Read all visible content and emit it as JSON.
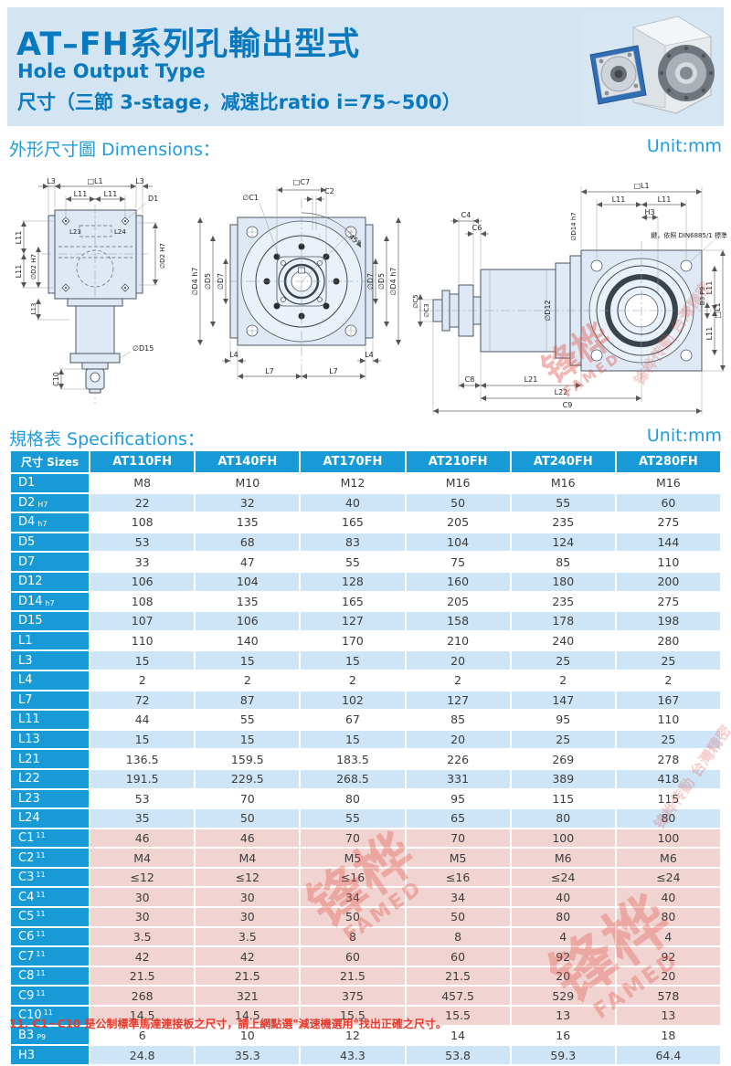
{
  "colors": {
    "title_blue": "#0879bf",
    "section_blue": "#1b9ce0",
    "table_blue": "#189ad6",
    "row_light_blue": "#cde5f6",
    "row_pink": "#f1d4d1",
    "note_red": "#e8392b",
    "band_bg": "#d3e4f3",
    "flange_blue": "#2f6db5",
    "watermark_red": "#e05448"
  },
  "header": {
    "title": "AT–FH系列孔輸出型式",
    "subtitle_en": "Hole Output Type",
    "subtitle_spec": "尺寸（三節 3-stage，减速比ratio i=75~500）"
  },
  "sections": {
    "dimensions": {
      "label": "外形尺寸圖 Dimensions：",
      "unit": "Unit:mm"
    },
    "specifications": {
      "label": "規格表 Specifications：",
      "unit": "Unit:mm"
    }
  },
  "drawings": {
    "left": {
      "labels": {
        "l3a": "L3",
        "l1": "□L1",
        "l3b": "L3",
        "l11a": "L11",
        "l11b": "L11",
        "d1": "D1",
        "l23": "L23",
        "l24": "L24",
        "d2r": "∅D2 H7",
        "l11c": "L11",
        "l11d": "L11",
        "d2l": "∅D2 H7",
        "l13": "L13",
        "d15": "∅D15",
        "c10": "C10"
      }
    },
    "middle": {
      "labels": {
        "c7": "□C7",
        "c1": "∅C1",
        "c2": "C2",
        "deg45": "45°",
        "d4l": "∅D4 h7",
        "d5l": "∅D5",
        "d7l": "∅D7",
        "d7r": "∅D7",
        "d5r": "∅D5",
        "d4r": "∅D4 h7",
        "l4a": "L4",
        "l4b": "L4",
        "l7a": "L7",
        "l7b": "L7"
      }
    },
    "right": {
      "labels": {
        "c4": "C4",
        "c6": "C6",
        "l1top": "□L1",
        "l11a": "L11",
        "l11b": "L11",
        "h3": "H3",
        "key_note": "鍵，依照 DIN6885/1 標準",
        "c5": "∅C5",
        "c3": "∅C3",
        "d14": "∅D14 h7",
        "d12": "∅D12",
        "c8": "C8",
        "l21": "L21",
        "l22": "L22",
        "c9": "C9",
        "b3": "B3 P9",
        "l11r1": "L11",
        "l11r2": "L11",
        "l1r": "□L1"
      }
    }
  },
  "table": {
    "header": [
      "尺寸 Sizes",
      "AT110FH",
      "AT140FH",
      "AT170FH",
      "AT210FH",
      "AT240FH",
      "AT280FH"
    ],
    "rows": [
      {
        "label": "D1",
        "values": [
          "M8",
          "M10",
          "M12",
          "M16",
          "M16",
          "M16"
        ]
      },
      {
        "label": "D2",
        "sub": "H7",
        "values": [
          "22",
          "32",
          "40",
          "50",
          "55",
          "60"
        ]
      },
      {
        "label": "D4",
        "sub": "h7",
        "values": [
          "108",
          "135",
          "165",
          "205",
          "235",
          "275"
        ]
      },
      {
        "label": "D5",
        "values": [
          "53",
          "68",
          "83",
          "104",
          "124",
          "144"
        ]
      },
      {
        "label": "D7",
        "values": [
          "33",
          "47",
          "55",
          "75",
          "85",
          "110"
        ]
      },
      {
        "label": "D12",
        "values": [
          "106",
          "104",
          "128",
          "160",
          "180",
          "200"
        ]
      },
      {
        "label": "D14",
        "sub": "h7",
        "values": [
          "108",
          "135",
          "165",
          "205",
          "235",
          "275"
        ]
      },
      {
        "label": "D15",
        "values": [
          "107",
          "106",
          "127",
          "158",
          "178",
          "198"
        ]
      },
      {
        "label": "L1",
        "values": [
          "110",
          "140",
          "170",
          "210",
          "240",
          "280"
        ]
      },
      {
        "label": "L3",
        "values": [
          "15",
          "15",
          "15",
          "20",
          "25",
          "25"
        ]
      },
      {
        "label": "L4",
        "values": [
          "2",
          "2",
          "2",
          "2",
          "2",
          "2"
        ]
      },
      {
        "label": "L7",
        "values": [
          "72",
          "87",
          "102",
          "127",
          "147",
          "167"
        ]
      },
      {
        "label": "L11",
        "values": [
          "44",
          "55",
          "67",
          "85",
          "95",
          "110"
        ]
      },
      {
        "label": "L13",
        "values": [
          "15",
          "15",
          "15",
          "20",
          "25",
          "25"
        ]
      },
      {
        "label": "L21",
        "values": [
          "136.5",
          "159.5",
          "183.5",
          "226",
          "269",
          "278"
        ]
      },
      {
        "label": "L22",
        "values": [
          "191.5",
          "229.5",
          "268.5",
          "331",
          "389",
          "418"
        ]
      },
      {
        "label": "L23",
        "values": [
          "53",
          "70",
          "80",
          "95",
          "115",
          "115"
        ]
      },
      {
        "label": "L24",
        "values": [
          "35",
          "50",
          "55",
          "65",
          "80",
          "80"
        ]
      },
      {
        "label": "C1",
        "sup": "11",
        "group": "pink",
        "values": [
          "46",
          "46",
          "70",
          "70",
          "100",
          "100"
        ]
      },
      {
        "label": "C2",
        "sup": "11",
        "group": "pink",
        "values": [
          "M4",
          "M4",
          "M5",
          "M5",
          "M6",
          "M6"
        ]
      },
      {
        "label": "C3",
        "sup": "11",
        "group": "pink",
        "values": [
          "≤12",
          "≤12",
          "≤16",
          "≤16",
          "≤24",
          "≤24"
        ]
      },
      {
        "label": "C4",
        "sup": "11",
        "group": "pink",
        "values": [
          "30",
          "30",
          "34",
          "34",
          "40",
          "40"
        ]
      },
      {
        "label": "C5",
        "sup": "11",
        "group": "pink",
        "values": [
          "30",
          "30",
          "50",
          "50",
          "80",
          "80"
        ]
      },
      {
        "label": "C6",
        "sup": "11",
        "group": "pink",
        "values": [
          "3.5",
          "3.5",
          "8",
          "8",
          "4",
          "4"
        ]
      },
      {
        "label": "C7",
        "sup": "11",
        "group": "pink",
        "values": [
          "42",
          "42",
          "60",
          "60",
          "92",
          "92"
        ]
      },
      {
        "label": "C8",
        "sup": "11",
        "group": "pink",
        "values": [
          "21.5",
          "21.5",
          "21.5",
          "21.5",
          "20",
          "20"
        ]
      },
      {
        "label": "C9",
        "sup": "11",
        "group": "pink",
        "values": [
          "268",
          "321",
          "375",
          "457.5",
          "529",
          "578"
        ]
      },
      {
        "label": "C10",
        "sup": "11",
        "group": "pink",
        "values": [
          "14.5",
          "14.5",
          "15.5",
          "15.5",
          "13",
          "13"
        ]
      },
      {
        "label": "B3",
        "sub": "P9",
        "values": [
          "6",
          "10",
          "12",
          "14",
          "16",
          "18"
        ]
      },
      {
        "label": "H3",
        "values": [
          "24.8",
          "35.3",
          "43.3",
          "53.8",
          "59.3",
          "64.4"
        ]
      }
    ]
  },
  "footnote": "11. C1~C10 是公制標準馬達連接板之尺寸，請上網點選\"減速機選用\"找出正確之尺寸。",
  "watermark": {
    "cn": "锋桦",
    "en": "FAMED",
    "diag": "锋桦传動 台灣精密"
  }
}
